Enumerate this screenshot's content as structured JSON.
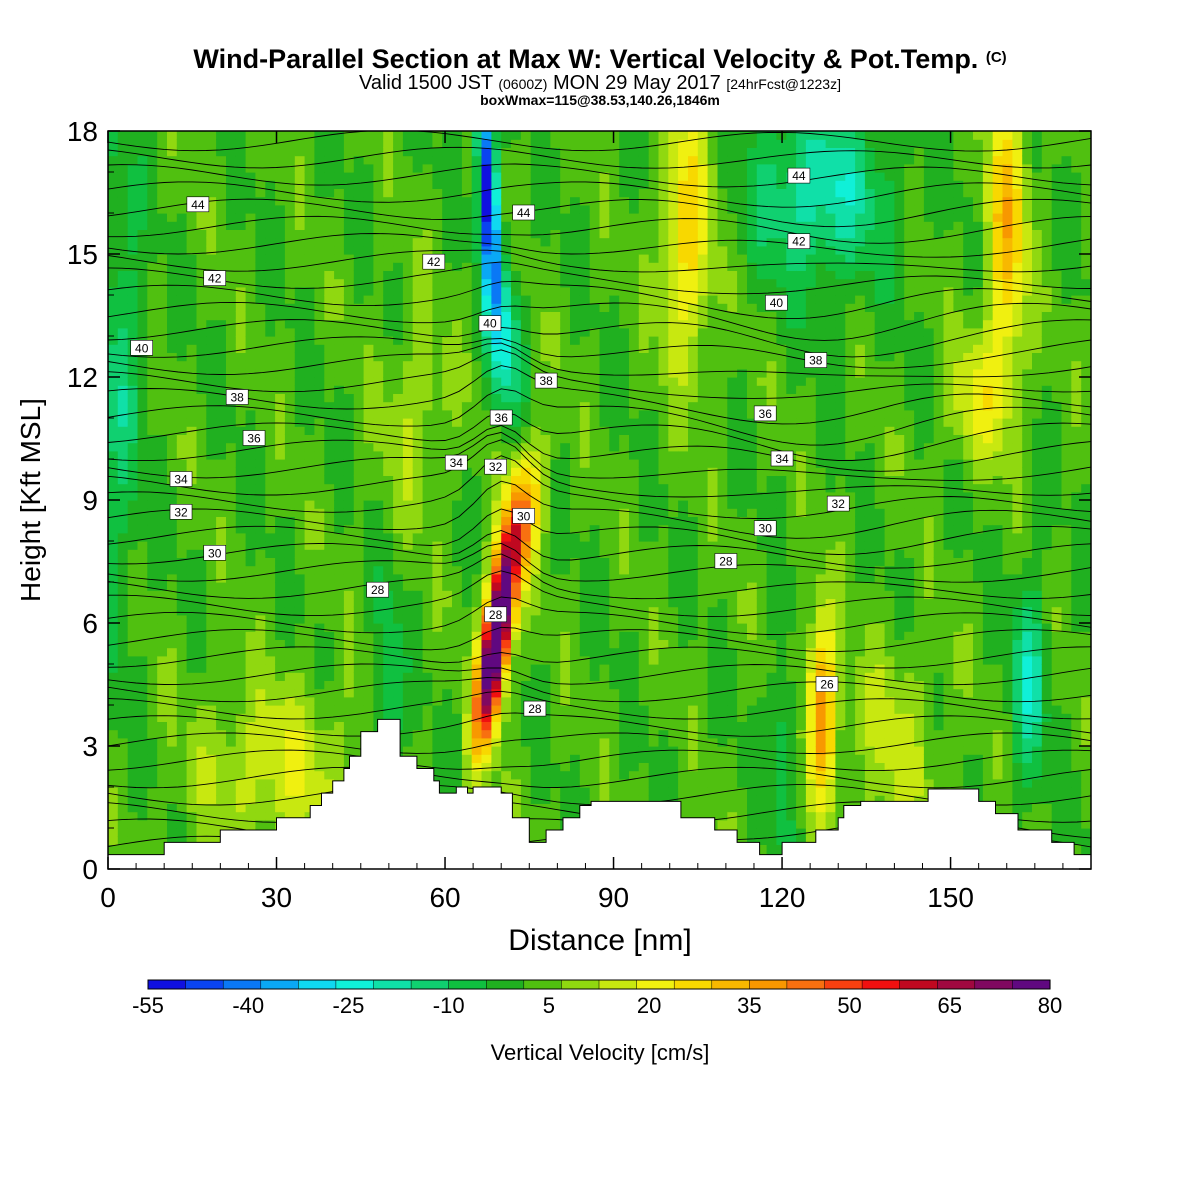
{
  "header": {
    "title": "Wind-Parallel Section at Max W: Vertical Velocity & Pot.Temp.",
    "copyright": "(C)",
    "valid_prefix": "Valid 1500 JST",
    "valid_utc": "(0600Z)",
    "valid_date": "MON 29 May 2017",
    "forecast": "[24hrFcst@1223z]",
    "boxinfo": "boxWmax=115@38.53,140.26,1846m"
  },
  "colors": {
    "velocity_scale": [
      "#1010e0",
      "#0a44f0",
      "#0a78f5",
      "#0aa8f5",
      "#10d8f0",
      "#10f0d8",
      "#10e0a8",
      "#10d070",
      "#10c040",
      "#20b020",
      "#50c010",
      "#90d810",
      "#c8e810",
      "#f0f010",
      "#f8d800",
      "#f8b800",
      "#f89800",
      "#f87010",
      "#f84010",
      "#f01010",
      "#c00820",
      "#a00840",
      "#800860",
      "#600880"
    ]
  },
  "chart_data": {
    "type": "heatmap",
    "title": "Wind-Parallel Section at Max W: Vertical Velocity & Pot.Temp.",
    "xlabel": "Distance [nm]",
    "ylabel": "Height [Kft MSL]",
    "xlim": [
      0,
      175
    ],
    "ylim": [
      0,
      18
    ],
    "x_ticks": [
      0,
      30,
      60,
      90,
      120,
      150
    ],
    "y_ticks": [
      0,
      3,
      6,
      9,
      12,
      15,
      18
    ],
    "colorbar": {
      "label": "Vertical Velocity [cm/s]",
      "min": -55,
      "max": 80,
      "step": 5,
      "tick_labels": [
        -55,
        -40,
        -25,
        -10,
        5,
        20,
        35,
        50,
        65,
        80
      ]
    },
    "theta_contour_labels": [
      {
        "value": "44",
        "x": 16,
        "y": 16.2
      },
      {
        "value": "42",
        "x": 19,
        "y": 14.4
      },
      {
        "value": "40",
        "x": 6,
        "y": 12.7
      },
      {
        "value": "38",
        "x": 23,
        "y": 11.5
      },
      {
        "value": "36",
        "x": 26,
        "y": 10.5
      },
      {
        "value": "34",
        "x": 13,
        "y": 9.5
      },
      {
        "value": "32",
        "x": 13,
        "y": 8.7
      },
      {
        "value": "30",
        "x": 19,
        "y": 7.7
      },
      {
        "value": "28",
        "x": 48,
        "y": 6.8
      },
      {
        "value": "42",
        "x": 58,
        "y": 14.8
      },
      {
        "value": "44",
        "x": 74,
        "y": 16.0
      },
      {
        "value": "40",
        "x": 68,
        "y": 13.3
      },
      {
        "value": "38",
        "x": 78,
        "y": 11.9
      },
      {
        "value": "36",
        "x": 70,
        "y": 11.0
      },
      {
        "value": "34",
        "x": 62,
        "y": 9.9
      },
      {
        "value": "32",
        "x": 69,
        "y": 9.8
      },
      {
        "value": "30",
        "x": 74,
        "y": 8.6
      },
      {
        "value": "28",
        "x": 69,
        "y": 6.2
      },
      {
        "value": "28",
        "x": 76,
        "y": 3.9
      },
      {
        "value": "44",
        "x": 123,
        "y": 16.9
      },
      {
        "value": "42",
        "x": 123,
        "y": 15.3
      },
      {
        "value": "40",
        "x": 119,
        "y": 13.8
      },
      {
        "value": "38",
        "x": 126,
        "y": 12.4
      },
      {
        "value": "36",
        "x": 117,
        "y": 11.1
      },
      {
        "value": "34",
        "x": 120,
        "y": 10.0
      },
      {
        "value": "32",
        "x": 130,
        "y": 8.9
      },
      {
        "value": "30",
        "x": 117,
        "y": 8.3
      },
      {
        "value": "28",
        "x": 110,
        "y": 7.5
      },
      {
        "value": "26",
        "x": 128,
        "y": 4.5
      }
    ],
    "terrain_kft": [
      [
        0,
        0.35
      ],
      [
        10,
        0.35
      ],
      [
        10,
        0.65
      ],
      [
        20,
        0.65
      ],
      [
        20,
        0.95
      ],
      [
        30,
        0.95
      ],
      [
        30,
        1.25
      ],
      [
        36,
        1.25
      ],
      [
        36,
        1.55
      ],
      [
        38,
        1.55
      ],
      [
        38,
        1.85
      ],
      [
        40,
        1.85
      ],
      [
        40,
        2.15
      ],
      [
        42,
        2.15
      ],
      [
        42,
        2.45
      ],
      [
        43,
        2.45
      ],
      [
        43,
        2.75
      ],
      [
        45,
        2.75
      ],
      [
        45,
        3.35
      ],
      [
        48,
        3.35
      ],
      [
        48,
        3.65
      ],
      [
        52,
        3.65
      ],
      [
        52,
        2.75
      ],
      [
        55,
        2.75
      ],
      [
        55,
        2.45
      ],
      [
        58,
        2.45
      ],
      [
        58,
        2.15
      ],
      [
        59,
        2.15
      ],
      [
        59,
        1.85
      ],
      [
        62,
        1.85
      ],
      [
        62,
        2.0
      ],
      [
        64,
        2.0
      ],
      [
        64,
        1.85
      ],
      [
        65,
        1.85
      ],
      [
        65,
        2.0
      ],
      [
        70,
        2.0
      ],
      [
        70,
        1.85
      ],
      [
        72,
        1.85
      ],
      [
        72,
        1.25
      ],
      [
        75,
        1.25
      ],
      [
        75,
        0.65
      ],
      [
        78,
        0.65
      ],
      [
        78,
        0.95
      ],
      [
        81,
        0.95
      ],
      [
        81,
        1.25
      ],
      [
        84,
        1.25
      ],
      [
        84,
        1.55
      ],
      [
        86,
        1.55
      ],
      [
        86,
        1.65
      ],
      [
        102,
        1.65
      ],
      [
        102,
        1.25
      ],
      [
        108,
        1.25
      ],
      [
        108,
        0.95
      ],
      [
        112,
        0.95
      ],
      [
        112,
        0.65
      ],
      [
        116,
        0.65
      ],
      [
        116,
        0.35
      ],
      [
        120,
        0.35
      ],
      [
        120,
        0.65
      ],
      [
        126,
        0.65
      ],
      [
        126,
        0.95
      ],
      [
        130,
        0.95
      ],
      [
        130,
        1.25
      ],
      [
        131,
        1.25
      ],
      [
        131,
        1.55
      ],
      [
        134,
        1.55
      ],
      [
        134,
        1.65
      ],
      [
        146,
        1.65
      ],
      [
        146,
        1.95
      ],
      [
        155,
        1.95
      ],
      [
        155,
        1.65
      ],
      [
        158,
        1.65
      ],
      [
        158,
        1.35
      ],
      [
        162,
        1.35
      ],
      [
        162,
        0.95
      ],
      [
        168,
        0.95
      ],
      [
        168,
        0.65
      ],
      [
        172,
        0.65
      ],
      [
        172,
        0.35
      ],
      [
        175,
        0.35
      ]
    ]
  }
}
